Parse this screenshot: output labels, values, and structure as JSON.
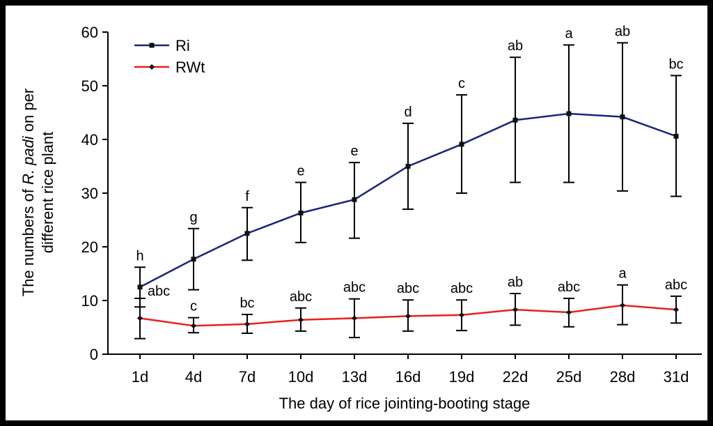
{
  "chart_data": {
    "type": "line",
    "xlabel": "The day of rice jointing-booting stage",
    "ylabel_line1_pre": "The numbers of ",
    "ylabel_line1_italic": "R. padi",
    "ylabel_line1_post": " on per",
    "ylabel_line2": "different rice plant",
    "ylim": [
      0,
      60
    ],
    "yticks": [
      0,
      10,
      20,
      30,
      40,
      50,
      60
    ],
    "categories": [
      "1d",
      "4d",
      "7d",
      "10d",
      "13d",
      "16d",
      "19d",
      "22d",
      "25d",
      "28d",
      "31d"
    ],
    "legend_position": "top-left",
    "series": [
      {
        "name": "Ri",
        "color": "#1a237e",
        "marker": "square",
        "values": [
          12.5,
          17.7,
          22.5,
          26.3,
          28.8,
          35.0,
          39.1,
          43.6,
          44.8,
          44.2,
          40.6
        ],
        "err_low": [
          8.8,
          12.0,
          17.5,
          20.8,
          21.6,
          27.0,
          30.0,
          32.0,
          32.0,
          30.4,
          29.4
        ],
        "err_high": [
          16.2,
          23.4,
          27.3,
          32.0,
          35.7,
          43.0,
          48.3,
          55.3,
          57.6,
          58.0,
          51.9
        ],
        "labels": [
          "h",
          "g",
          "f",
          "e",
          "e",
          "d",
          "c",
          "ab",
          "a",
          "ab",
          "bc"
        ]
      },
      {
        "name": "RWt",
        "color": "#e8201c",
        "marker": "diamond",
        "values": [
          6.7,
          5.3,
          5.6,
          6.4,
          6.7,
          7.1,
          7.3,
          8.3,
          7.8,
          9.1,
          8.3
        ],
        "err_low": [
          2.9,
          4.0,
          3.9,
          4.3,
          3.1,
          4.3,
          4.4,
          5.4,
          5.1,
          5.5,
          5.8
        ],
        "err_high": [
          10.4,
          6.8,
          7.4,
          8.6,
          10.3,
          10.1,
          10.1,
          11.3,
          10.4,
          12.9,
          10.8
        ],
        "labels": [
          "abc",
          "c",
          "bc",
          "abc",
          "abc",
          "abc",
          "abc",
          "ab",
          "abc",
          "a",
          "abc"
        ]
      }
    ]
  }
}
